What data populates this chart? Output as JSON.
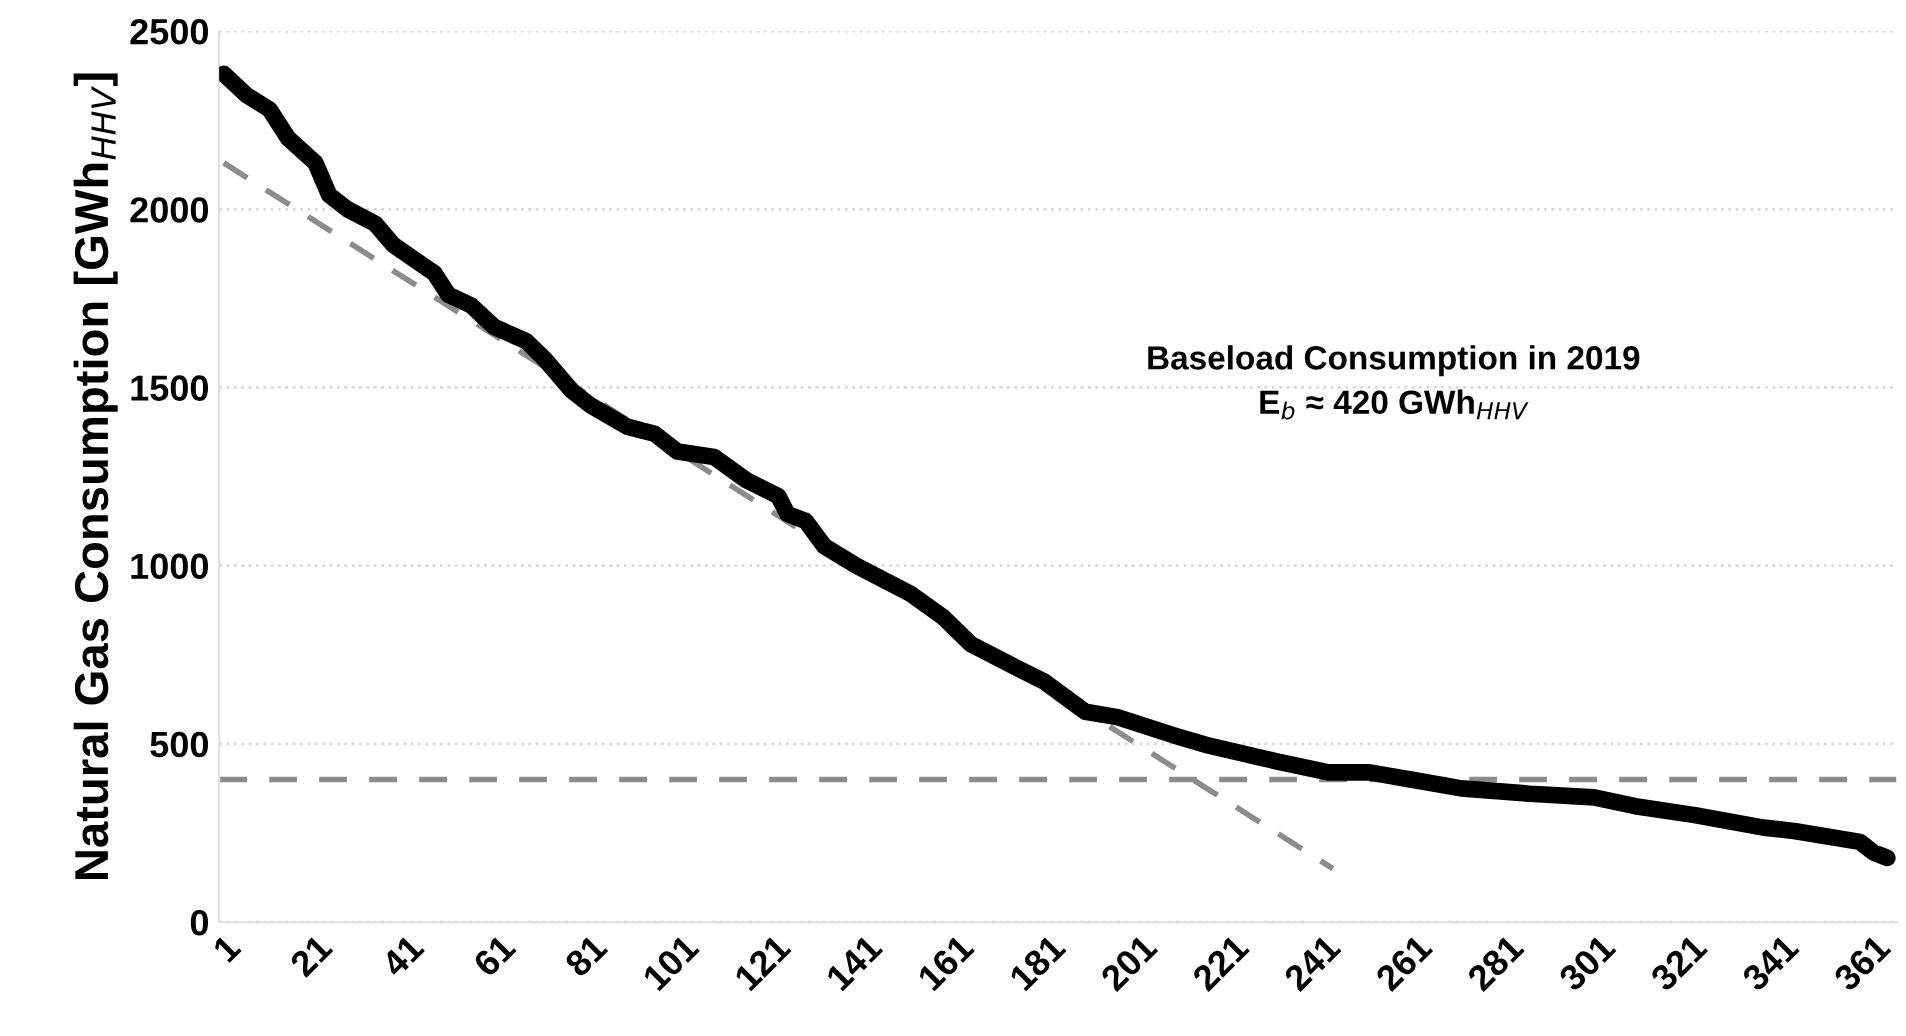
{
  "chart_data": {
    "type": "line",
    "ylabel": "Natural Gas Consumption [GWh$_{HHV}$]",
    "annotations": [
      "Baseload Consumption in 2019",
      "E$_{b}$ ≈ 420 GWh$_{HHV}$"
    ],
    "xlim": [
      0,
      366
    ],
    "xticks": [
      1,
      21,
      41,
      61,
      81,
      101,
      121,
      141,
      161,
      181,
      201,
      221,
      241,
      261,
      281,
      301,
      321,
      341,
      361
    ],
    "ylim": [
      0,
      2500
    ],
    "yticks": [
      0,
      500,
      1000,
      1500,
      2000,
      2500
    ],
    "grid": "y",
    "series": [
      {
        "color": "#000000",
        "line_style": "solid",
        "x": [
          1,
          6,
          11,
          15,
          21,
          24,
          28,
          34,
          38,
          47,
          50,
          55,
          60,
          67,
          71,
          77,
          81,
          89,
          95,
          100,
          108,
          115,
          122,
          124,
          128,
          132,
          139,
          151,
          158,
          164,
          173,
          180,
          189,
          196,
          208,
          216,
          226,
          231,
          242,
          251,
          260,
          271,
          286,
          300,
          309,
          322,
          337,
          344,
          358,
          361,
          364
        ],
        "values": [
          2380,
          2320,
          2280,
          2200,
          2130,
          2040,
          2000,
          1960,
          1900,
          1820,
          1760,
          1730,
          1670,
          1630,
          1580,
          1490,
          1450,
          1390,
          1370,
          1320,
          1305,
          1240,
          1195,
          1145,
          1125,
          1055,
          1000,
          920,
          855,
          780,
          720,
          675,
          590,
          575,
          525,
          495,
          465,
          450,
          420,
          420,
          400,
          375,
          360,
          350,
          325,
          300,
          265,
          255,
          225,
          195,
          180
        ]
      },
      {
        "color": "#8c8c8c",
        "line_style": "dashed",
        "x": [
          1,
          243
        ],
        "values": [
          2130,
          150
        ]
      }
    ],
    "ref_lines": [
      {
        "axis": "y",
        "value": 400,
        "color": "#8c8c8c",
        "line_style": "dashed"
      }
    ]
  }
}
